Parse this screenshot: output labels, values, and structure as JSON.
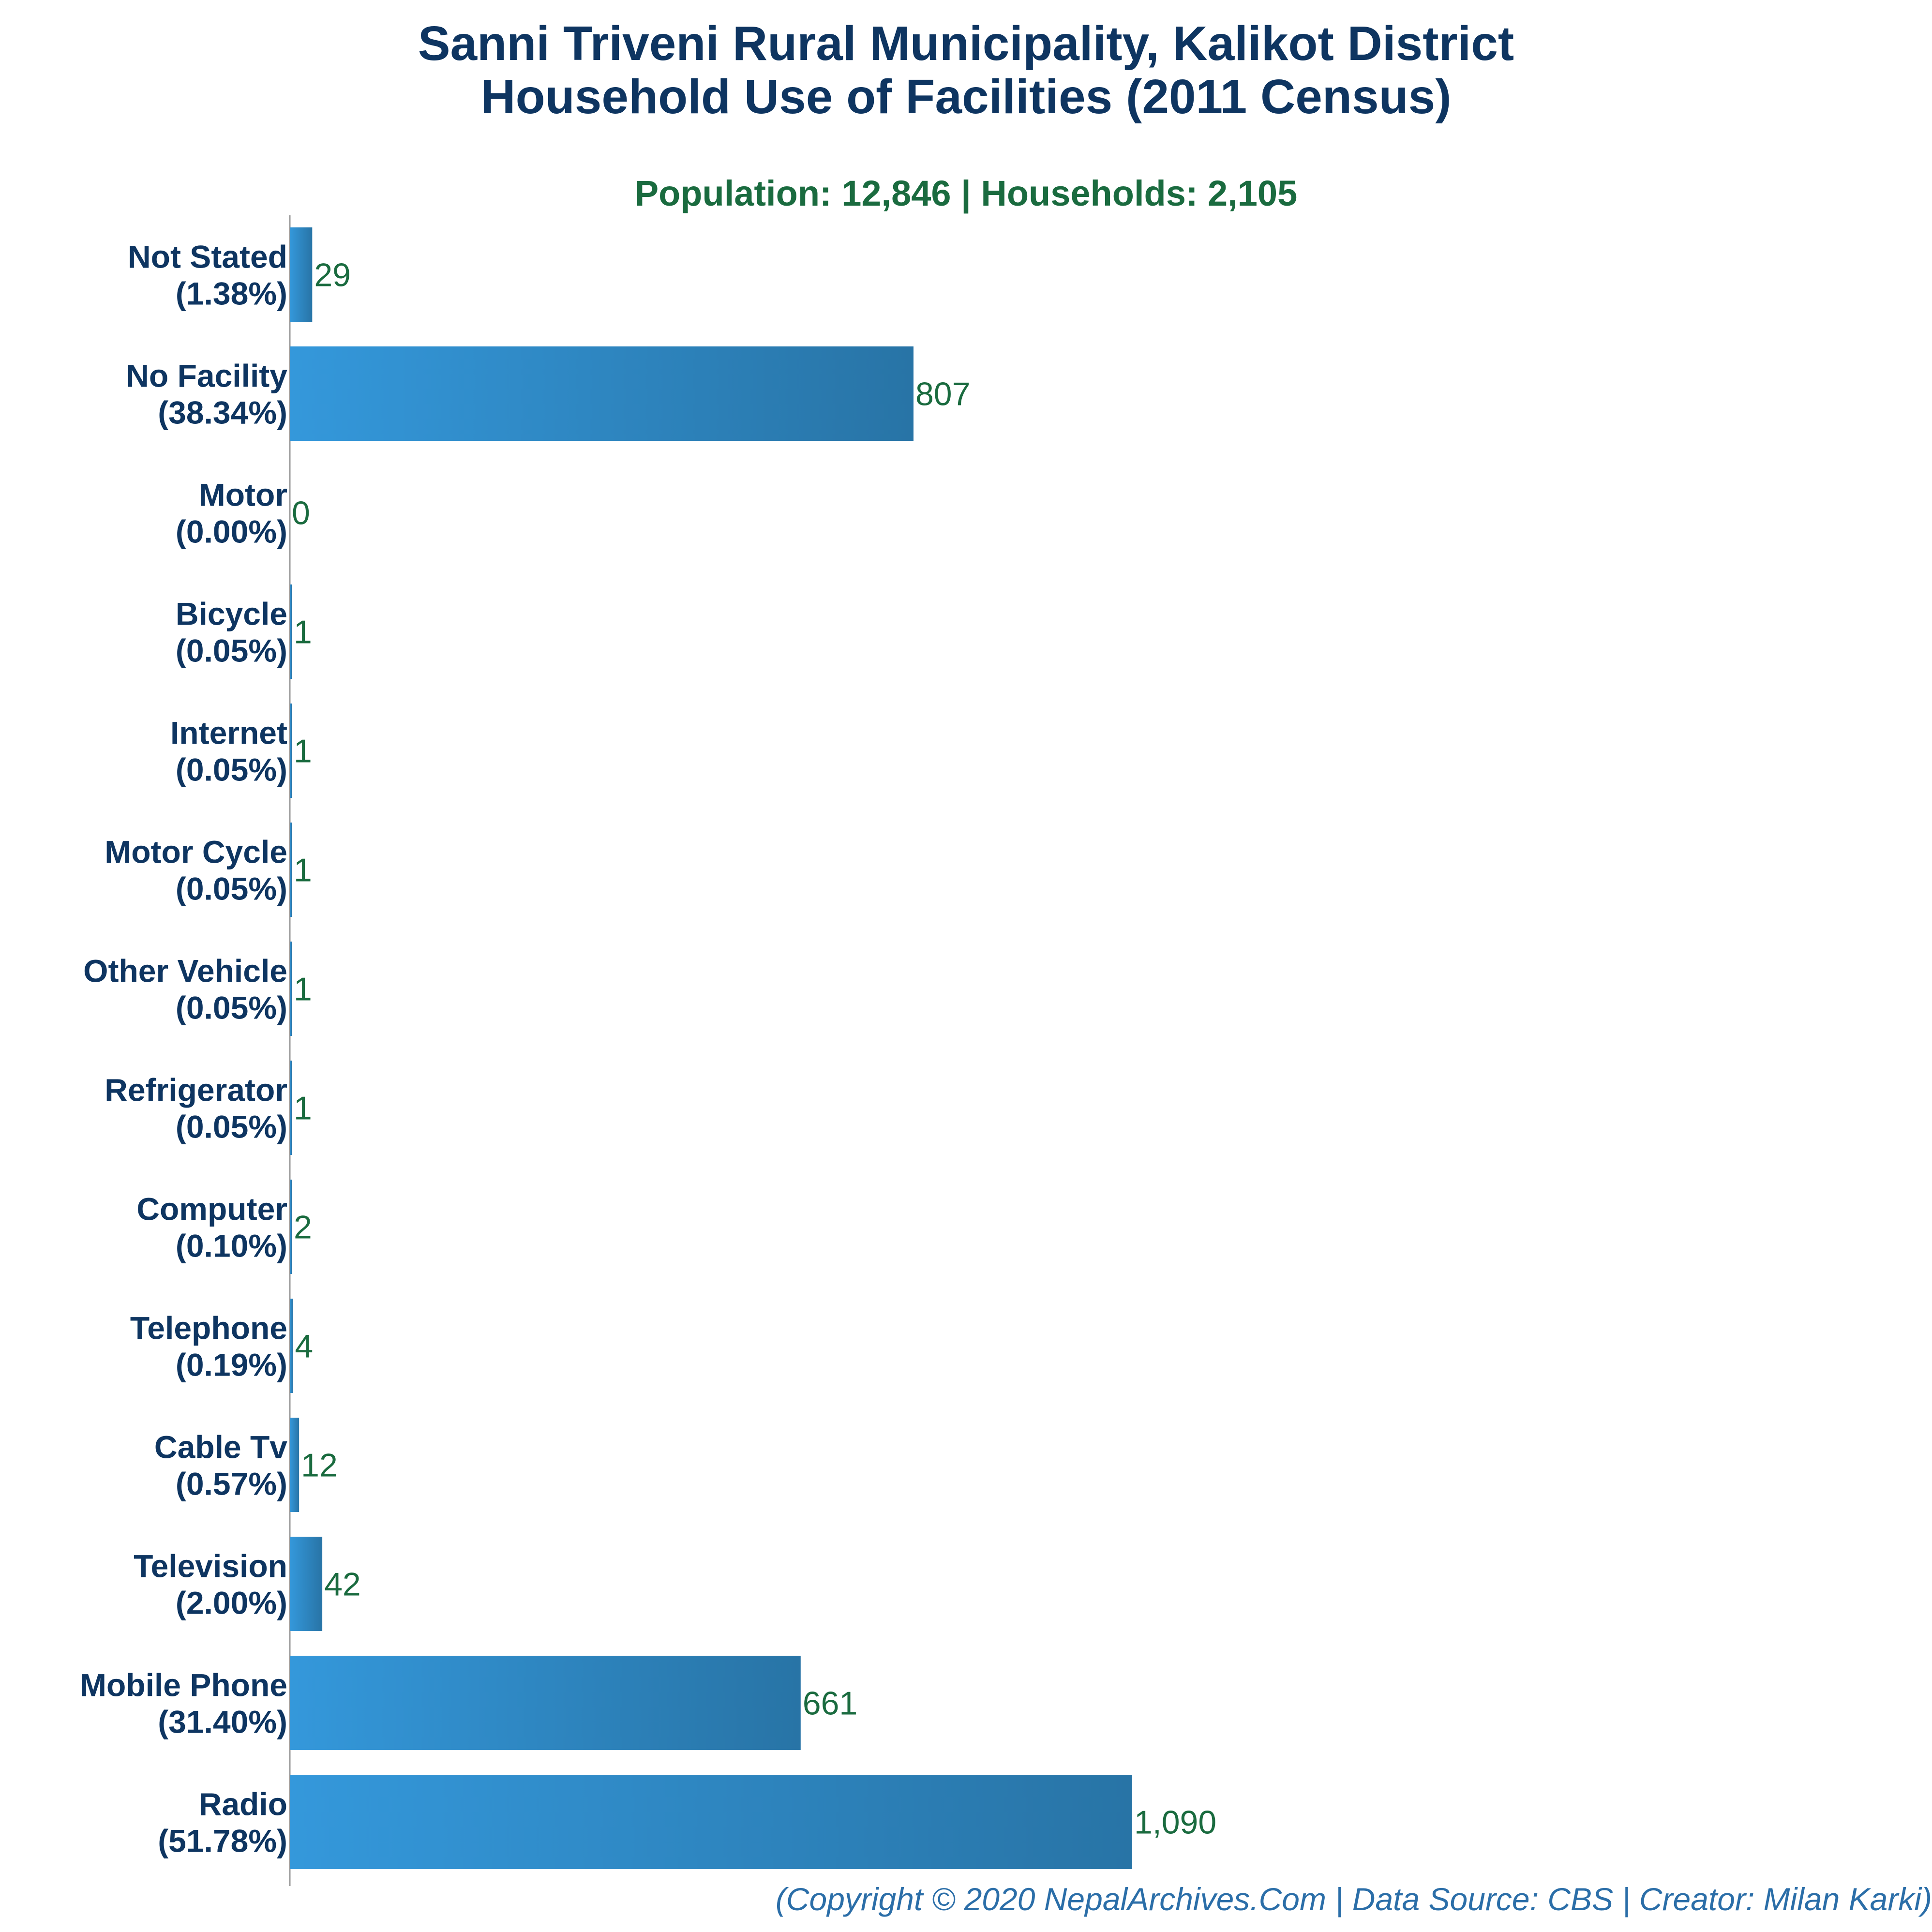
{
  "chart_data": {
    "type": "bar",
    "orientation": "horizontal",
    "title_lines": [
      "Sanni Triveni Rural Municipality, Kalikot District",
      "Household Use of Facilities (2011 Census)"
    ],
    "subtitle": "Population: 12,846 | Households: 2,105",
    "categories": [
      "Not Stated",
      "No Facility",
      "Motor",
      "Bicycle",
      "Internet",
      "Motor Cycle",
      "Other Vehicle",
      "Refrigerator",
      "Computer",
      "Telephone",
      "Cable Tv",
      "Television",
      "Mobile Phone",
      "Radio"
    ],
    "percent_labels": [
      "(1.38%)",
      "(38.34%)",
      "(0.00%)",
      "(0.05%)",
      "(0.05%)",
      "(0.05%)",
      "(0.05%)",
      "(0.05%)",
      "(0.10%)",
      "(0.19%)",
      "(0.57%)",
      "(2.00%)",
      "(31.40%)",
      "(51.78%)"
    ],
    "values": [
      29,
      807,
      0,
      1,
      1,
      1,
      1,
      1,
      2,
      4,
      12,
      42,
      661,
      1090
    ],
    "value_labels": [
      "29",
      "807",
      "0",
      "1",
      "1",
      "1",
      "1",
      "1",
      "2",
      "4",
      "12",
      "42",
      "661",
      "1,090"
    ],
    "xlim": [
      0,
      1090
    ],
    "grid": false,
    "legend": "none",
    "colors": {
      "bar_light": "#3498db",
      "bar_dark": "#2874a6",
      "title": "#0e3561",
      "subtitle": "#1a6b3f",
      "value_label": "#1a6b3f",
      "category_label": "#0e3561",
      "axis": "#999999",
      "footer": "#2b6ea8"
    }
  },
  "footer": "(Copyright © 2020 NepalArchives.Com | Data Source: CBS | Creator: Milan Karki)"
}
